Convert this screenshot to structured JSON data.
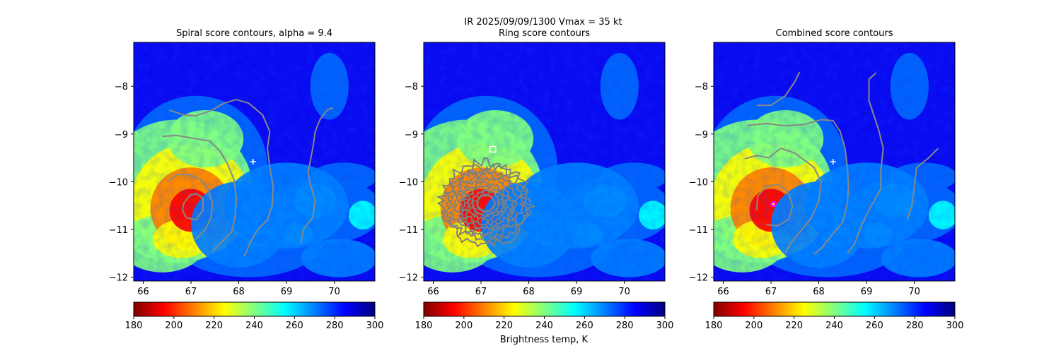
{
  "figure": {
    "suptitle_line1": "IR  2025/09/09/1300    Vmax = 35 kt",
    "colorbar_label": "Brightness temp, K"
  },
  "colormap": {
    "name": "jet_r",
    "stops": [
      "#800000",
      "#ff0000",
      "#ff8000",
      "#ffff00",
      "#80ff80",
      "#00ffff",
      "#0080ff",
      "#0000ff",
      "#000080"
    ]
  },
  "chart_data": [
    {
      "type": "heatmap",
      "title": "Spiral score contours, alpha =  9.4",
      "xlim": [
        65.8,
        70.85
      ],
      "ylim": [
        -12.08,
        -7.08
      ],
      "xticks": [
        "66",
        "67",
        "68",
        "69",
        "70"
      ],
      "yticks": [
        "−8",
        "−9",
        "−10",
        "−11",
        "−12"
      ],
      "colorbar": {
        "range": [
          180,
          300
        ],
        "ticks": [
          "180",
          "200",
          "220",
          "240",
          "260",
          "280",
          "300"
        ]
      },
      "markers": [
        {
          "kind": "plus",
          "x": 68.3,
          "y": -9.58,
          "color": "#ffffff"
        }
      ],
      "contours": [
        [
          [
            66.5,
            -10.0
          ],
          [
            66.7,
            -9.85
          ],
          [
            66.95,
            -9.85
          ],
          [
            67.2,
            -9.95
          ],
          [
            67.35,
            -10.15
          ],
          [
            67.45,
            -10.45
          ],
          [
            67.42,
            -10.75
          ],
          [
            67.3,
            -11.0
          ],
          [
            67.1,
            -11.2
          ]
        ],
        [
          [
            66.85,
            -10.45
          ],
          [
            66.98,
            -10.28
          ],
          [
            67.12,
            -10.25
          ],
          [
            67.25,
            -10.35
          ],
          [
            67.25,
            -10.6
          ],
          [
            67.1,
            -10.8
          ],
          [
            66.9,
            -10.75
          ],
          [
            66.82,
            -10.6
          ],
          [
            66.85,
            -10.45
          ]
        ],
        [
          [
            66.4,
            -9.05
          ],
          [
            66.7,
            -9.03
          ],
          [
            67.1,
            -9.1
          ],
          [
            67.4,
            -9.15
          ],
          [
            67.6,
            -9.35
          ],
          [
            67.75,
            -9.6
          ],
          [
            67.9,
            -9.95
          ],
          [
            67.95,
            -10.35
          ],
          [
            67.92,
            -10.75
          ],
          [
            67.85,
            -11.05
          ],
          [
            67.6,
            -11.3
          ],
          [
            67.45,
            -11.45
          ]
        ],
        [
          [
            66.55,
            -8.5
          ],
          [
            66.85,
            -8.6
          ],
          [
            67.1,
            -8.62
          ],
          [
            67.4,
            -8.52
          ],
          [
            67.7,
            -8.35
          ],
          [
            67.95,
            -8.28
          ],
          [
            68.2,
            -8.35
          ],
          [
            68.5,
            -8.6
          ],
          [
            68.65,
            -8.95
          ],
          [
            68.6,
            -9.3
          ],
          [
            68.65,
            -9.7
          ],
          [
            68.72,
            -10.1
          ],
          [
            68.7,
            -10.5
          ],
          [
            68.6,
            -10.8
          ],
          [
            68.4,
            -11.0
          ],
          [
            68.25,
            -11.25
          ],
          [
            68.15,
            -11.5
          ],
          [
            68.1,
            -11.55
          ]
        ],
        [
          [
            69.3,
            -11.3
          ],
          [
            69.35,
            -11.0
          ],
          [
            69.55,
            -10.75
          ],
          [
            69.6,
            -10.4
          ],
          [
            69.5,
            -10.05
          ],
          [
            69.45,
            -9.8
          ],
          [
            69.55,
            -9.3
          ],
          [
            69.6,
            -8.95
          ],
          [
            69.7,
            -8.7
          ],
          [
            69.85,
            -8.5
          ],
          [
            69.97,
            -8.45
          ]
        ]
      ]
    },
    {
      "type": "heatmap",
      "title": "Ring score contours",
      "xlim": [
        65.8,
        70.85
      ],
      "ylim": [
        -12.08,
        -7.08
      ],
      "xticks": [
        "66",
        "67",
        "68",
        "69",
        "70"
      ],
      "yticks": [
        "−8",
        "−9",
        "−10",
        "−11",
        "−12"
      ],
      "colorbar": {
        "range": [
          180,
          300
        ],
        "ticks": [
          "180",
          "200",
          "220",
          "240",
          "260",
          "280",
          "300"
        ]
      },
      "markers": [
        {
          "kind": "square",
          "x": 67.25,
          "y": -9.32,
          "color": "#ffffff"
        }
      ],
      "ring_region": {
        "cx": 67.1,
        "cy": -10.45,
        "rx": 0.92,
        "ry": 0.78
      }
    },
    {
      "type": "heatmap",
      "title": "Combined score contours",
      "xlim": [
        65.8,
        70.85
      ],
      "ylim": [
        -12.08,
        -7.08
      ],
      "xticks": [
        "66",
        "67",
        "68",
        "69",
        "70"
      ],
      "yticks": [
        "−8",
        "−9",
        "−10",
        "−11",
        "−12"
      ],
      "colorbar": {
        "range": [
          180,
          300
        ],
        "ticks": [
          "180",
          "200",
          "220",
          "240",
          "260",
          "280",
          "300"
        ]
      },
      "markers": [
        {
          "kind": "plus",
          "x": 68.3,
          "y": -9.58,
          "color": "#ffffff"
        },
        {
          "kind": "circle",
          "x": 67.05,
          "y": -10.47,
          "color": "#ff00ff"
        }
      ],
      "contours": [
        [
          [
            66.7,
            -10.6
          ],
          [
            66.72,
            -10.3
          ],
          [
            66.9,
            -10.1
          ],
          [
            67.15,
            -10.05
          ],
          [
            67.35,
            -10.2
          ],
          [
            67.45,
            -10.5
          ],
          [
            67.38,
            -10.78
          ],
          [
            67.15,
            -10.92
          ],
          [
            66.9,
            -10.9
          ]
        ],
        [
          [
            66.45,
            -9.52
          ],
          [
            66.7,
            -9.45
          ],
          [
            66.95,
            -9.5
          ],
          [
            67.2,
            -9.3
          ],
          [
            67.5,
            -9.4
          ],
          [
            67.7,
            -9.55
          ],
          [
            67.9,
            -9.7
          ],
          [
            68.05,
            -10.0
          ],
          [
            68.0,
            -10.4
          ],
          [
            67.85,
            -10.75
          ],
          [
            67.65,
            -11.0
          ],
          [
            67.4,
            -11.3
          ],
          [
            67.3,
            -11.5
          ]
        ],
        [
          [
            66.5,
            -8.82
          ],
          [
            66.9,
            -8.78
          ],
          [
            67.3,
            -8.83
          ],
          [
            67.7,
            -8.8
          ],
          [
            68.05,
            -8.7
          ],
          [
            68.3,
            -8.72
          ],
          [
            68.45,
            -8.95
          ],
          [
            68.55,
            -9.3
          ],
          [
            68.6,
            -9.7
          ],
          [
            68.62,
            -10.1
          ],
          [
            68.6,
            -10.45
          ],
          [
            68.5,
            -10.85
          ],
          [
            68.25,
            -11.15
          ],
          [
            68.05,
            -11.4
          ],
          [
            67.9,
            -11.52
          ]
        ],
        [
          [
            66.7,
            -8.4
          ],
          [
            67.0,
            -8.4
          ],
          [
            67.3,
            -8.2
          ],
          [
            67.5,
            -7.9
          ],
          [
            67.6,
            -7.7
          ]
        ],
        [
          [
            69.2,
            -7.72
          ],
          [
            69.05,
            -7.85
          ],
          [
            69.05,
            -8.3
          ],
          [
            69.25,
            -8.9
          ],
          [
            69.35,
            -9.3
          ],
          [
            69.3,
            -9.75
          ],
          [
            69.3,
            -10.15
          ],
          [
            69.1,
            -10.5
          ],
          [
            68.9,
            -10.9
          ],
          [
            68.75,
            -11.3
          ],
          [
            68.6,
            -11.5
          ]
        ],
        [
          [
            69.85,
            -10.8
          ],
          [
            69.95,
            -10.5
          ],
          [
            70.0,
            -10.1
          ],
          [
            70.05,
            -9.7
          ],
          [
            70.3,
            -9.5
          ],
          [
            70.5,
            -9.3
          ]
        ]
      ]
    }
  ]
}
